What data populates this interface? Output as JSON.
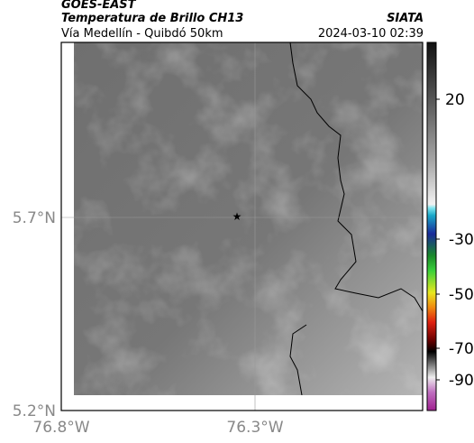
{
  "header": {
    "source": "GOES-EAST",
    "title": "Temperatura de Brillo CH13",
    "org": "SIATA",
    "subtitle": "Vía Medellín - Quibdó 50km",
    "datetime": "2024-03-10 02:39"
  },
  "map": {
    "lat_labels": [
      "5.7°N",
      "5.2°N"
    ],
    "lon_labels": [
      "76.8°W",
      "76.3°W"
    ]
  },
  "colorbar": {
    "ticks": [
      20,
      -30,
      -50,
      -70,
      -90
    ]
  }
}
